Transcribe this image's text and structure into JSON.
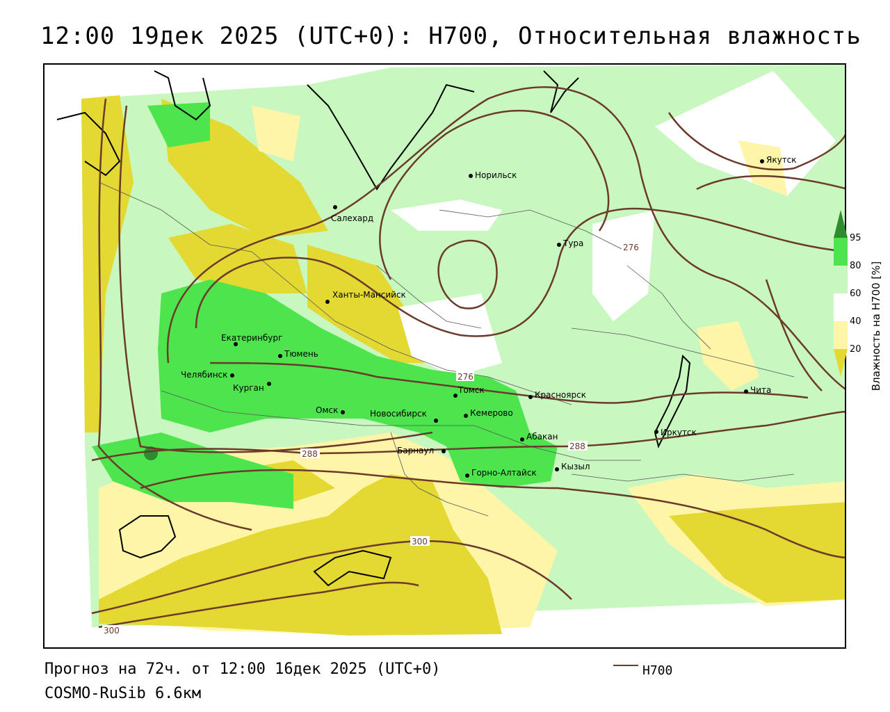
{
  "title": "12:00 19дек 2025 (UTC+0): H700, Относительная влажность",
  "footer": {
    "forecast": "Прогноз на 72ч. от 12:00 16дек 2025 (UTC+0)",
    "model": "COSMO-RuSib 6.6км"
  },
  "legend": {
    "line_label": "H700",
    "line_color": "#6b3a2a"
  },
  "colorbar": {
    "title": "Влажность на H700 [%]",
    "ticks": [
      "95",
      "80",
      "60",
      "40",
      "20"
    ],
    "colors": {
      "c95": "#2e8b2e",
      "c80": "#4ee44e",
      "c60": "#c8f7c0",
      "c40": "#ffffff",
      "c20": "#fff5a8",
      "c0": "#e4d832"
    }
  },
  "cities": [
    {
      "name": "Норильск"
    },
    {
      "name": "Якутск"
    },
    {
      "name": "Салехард"
    },
    {
      "name": "Тура"
    },
    {
      "name": "Ханты-Мансийск"
    },
    {
      "name": "Екатеринбург"
    },
    {
      "name": "Тюмень"
    },
    {
      "name": "Челябинск"
    },
    {
      "name": "Курган"
    },
    {
      "name": "Томск"
    },
    {
      "name": "Красноярск"
    },
    {
      "name": "Чита"
    },
    {
      "name": "Омск"
    },
    {
      "name": "Новосибирск"
    },
    {
      "name": "Кемерово"
    },
    {
      "name": "Абакан"
    },
    {
      "name": "Иркутск"
    },
    {
      "name": "Барнаул"
    },
    {
      "name": "Кызыл"
    },
    {
      "name": "Горно-Алтайск"
    }
  ],
  "contour_labels": [
    "276",
    "276",
    "288",
    "288",
    "300",
    "300"
  ]
}
